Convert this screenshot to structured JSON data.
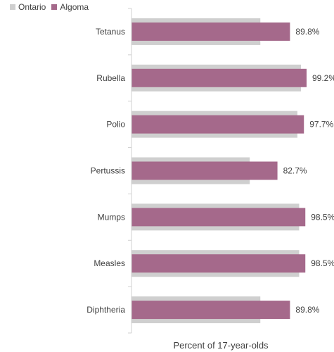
{
  "legend": {
    "ontario": "Ontario",
    "algoma": "Algoma"
  },
  "colors": {
    "ontario": "#cfcfcf",
    "algoma": "#a5698b",
    "axis": "#d0d0d0",
    "text": "#404040"
  },
  "chart_data": {
    "type": "bar",
    "orientation": "horizontal",
    "categories": [
      "Tetanus",
      "Rubella",
      "Polio",
      "Pertussis",
      "Mumps",
      "Measles",
      "Diphtheria"
    ],
    "series": [
      {
        "name": "Ontario",
        "values": [
          73.0,
          96.0,
          94.0,
          67.0,
          95.0,
          95.0,
          73.0
        ]
      },
      {
        "name": "Algoma",
        "values": [
          89.8,
          99.2,
          97.7,
          82.7,
          98.5,
          98.5,
          89.8
        ]
      }
    ],
    "data_labels": [
      "89.8%",
      "99.2%",
      "97.7%",
      "82.7%",
      "98.5%",
      "98.5%",
      "89.8%"
    ],
    "xlabel": "Percent of 17-year-olds",
    "xlim": [
      0,
      100
    ],
    "grid": false,
    "legend_position": "top-left"
  }
}
